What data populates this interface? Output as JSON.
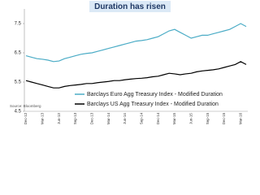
{
  "chart_data": {
    "type": "line",
    "title": "Duration has risen",
    "categories": [
      "Dec-12",
      null,
      null,
      "Mar-13",
      null,
      null,
      "Jun-13",
      null,
      null,
      "Sep-13",
      null,
      null,
      "Dec-13",
      null,
      null,
      "Mar-14",
      null,
      null,
      "Jun-14",
      null,
      null,
      "Sep-14",
      null,
      null,
      "Dec-14",
      null,
      null,
      "Mar-15",
      null,
      null,
      "Jun-15",
      null,
      null,
      "Sep-15",
      null,
      null,
      "Dec-15",
      null,
      null,
      "Mar-16",
      null
    ],
    "series": [
      {
        "name": "Barclays Euro Agg Treasury Index - Modified Duration",
        "color": "#4bacc6",
        "values": [
          6.4,
          6.35,
          6.3,
          6.28,
          6.25,
          6.2,
          6.22,
          6.3,
          6.35,
          6.4,
          6.45,
          6.48,
          6.5,
          6.55,
          6.6,
          6.65,
          6.7,
          6.75,
          6.8,
          6.85,
          6.9,
          6.92,
          6.95,
          7.0,
          7.05,
          7.15,
          7.25,
          7.3,
          7.2,
          7.1,
          7.0,
          7.05,
          7.1,
          7.1,
          7.15,
          7.2,
          7.25,
          7.3,
          7.4,
          7.5,
          7.4
        ]
      },
      {
        "name": "Barclays US Agg Treasury Index - Modified Duration",
        "color": "#000000",
        "values": [
          5.55,
          5.5,
          5.45,
          5.4,
          5.35,
          5.3,
          5.3,
          5.35,
          5.38,
          5.4,
          5.42,
          5.45,
          5.45,
          5.48,
          5.5,
          5.52,
          5.55,
          5.55,
          5.58,
          5.6,
          5.62,
          5.63,
          5.65,
          5.68,
          5.7,
          5.75,
          5.8,
          5.78,
          5.75,
          5.78,
          5.8,
          5.85,
          5.88,
          5.9,
          5.92,
          5.95,
          6.0,
          6.05,
          6.1,
          6.2,
          6.1
        ]
      }
    ],
    "ylim": [
      4.5,
      8
    ],
    "yticks": [
      4.5,
      5.5,
      6.5,
      7.5
    ],
    "grid": false,
    "source": "Source: Bloomberg"
  }
}
